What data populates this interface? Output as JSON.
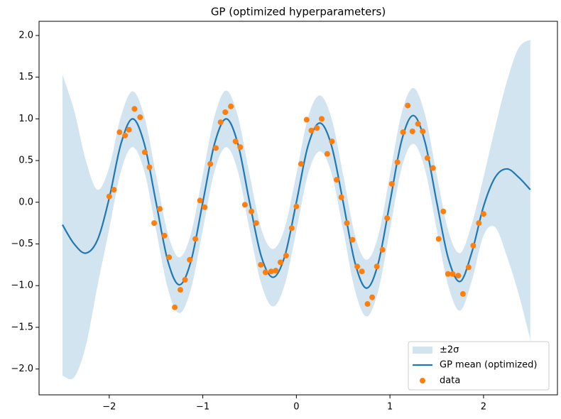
{
  "chart_data": {
    "type": "line",
    "title": "GP (optimized hyperparameters)",
    "x": [
      -2.5,
      -2.375,
      -2.25,
      -2.125,
      -2.0,
      -1.875,
      -1.75,
      -1.625,
      -1.5,
      -1.375,
      -1.25,
      -1.125,
      -1.0,
      -0.875,
      -0.75,
      -0.625,
      -0.5,
      -0.375,
      -0.25,
      -0.125,
      0,
      0.125,
      0.25,
      0.375,
      0.5,
      0.625,
      0.75,
      0.875,
      1.0,
      1.125,
      1.25,
      1.375,
      1.5,
      1.625,
      1.75,
      1.875,
      2.0,
      2.125,
      2.25,
      2.375,
      2.5
    ],
    "series": [
      {
        "name": "GP mean (optimized)",
        "color": "#1f77b4",
        "values": [
          -0.27,
          -0.5,
          -0.61,
          -0.45,
          0.05,
          0.7,
          1.0,
          0.7,
          0.0,
          -0.7,
          -0.99,
          -0.7,
          0.0,
          0.7,
          1.0,
          0.7,
          0.0,
          -0.65,
          -0.9,
          -0.65,
          0.0,
          0.68,
          0.95,
          0.68,
          0.0,
          -0.72,
          -1.03,
          -0.73,
          0.0,
          0.74,
          1.04,
          0.72,
          0.0,
          -0.68,
          -0.95,
          -0.6,
          -0.05,
          0.3,
          0.4,
          0.3,
          0.15
        ]
      }
    ],
    "band": {
      "name": "±2σ",
      "color": "#1f77b4",
      "alpha": 0.2,
      "upper": [
        1.53,
        1.1,
        0.5,
        0.15,
        0.42,
        1.03,
        1.33,
        1.03,
        0.33,
        -0.37,
        -0.66,
        -0.37,
        0.33,
        1.03,
        1.34,
        1.03,
        0.33,
        -0.32,
        -0.56,
        -0.31,
        0.34,
        1.02,
        1.28,
        1.01,
        0.33,
        -0.39,
        -0.69,
        -0.4,
        0.33,
        1.07,
        1.37,
        1.05,
        0.33,
        -0.35,
        -0.61,
        -0.26,
        0.3,
        0.9,
        1.45,
        1.85,
        1.95
      ],
      "lower": [
        -2.08,
        -2.1,
        -1.72,
        -1.0,
        -0.32,
        0.37,
        0.66,
        0.37,
        -0.33,
        -1.03,
        -1.33,
        -1.03,
        -0.33,
        0.37,
        0.66,
        0.37,
        -0.33,
        -0.98,
        -1.25,
        -0.99,
        -0.34,
        0.34,
        0.61,
        0.35,
        -0.33,
        -1.05,
        -1.37,
        -1.06,
        -0.33,
        0.41,
        0.7,
        0.39,
        -0.33,
        -1.01,
        -1.3,
        -0.94,
        -0.4,
        -0.3,
        -0.65,
        -1.1,
        -1.65
      ]
    },
    "scatter": {
      "name": "data",
      "color": "#ff7f0e",
      "x": [
        -2.0,
        -1.95,
        -1.89,
        -1.83,
        -1.79,
        -1.73,
        -1.67,
        -1.62,
        -1.57,
        -1.52,
        -1.46,
        -1.41,
        -1.36,
        -1.3,
        -1.24,
        -1.19,
        -1.14,
        -1.08,
        -1.03,
        -0.98,
        -0.92,
        -0.86,
        -0.81,
        -0.76,
        -0.7,
        -0.65,
        -0.6,
        -0.55,
        -0.48,
        -0.43,
        -0.38,
        -0.33,
        -0.27,
        -0.22,
        -0.17,
        -0.11,
        -0.05,
        0.0,
        0.05,
        0.11,
        0.16,
        0.22,
        0.27,
        0.33,
        0.38,
        0.43,
        0.48,
        0.54,
        0.6,
        0.65,
        0.7,
        0.76,
        0.81,
        0.86,
        0.92,
        0.97,
        1.02,
        1.08,
        1.14,
        1.19,
        1.24,
        1.3,
        1.35,
        1.4,
        1.46,
        1.52,
        1.57,
        1.62,
        1.67,
        1.73,
        1.78,
        1.84,
        1.89,
        1.95,
        2.0
      ],
      "y": [
        0.07,
        0.15,
        0.84,
        0.8,
        0.87,
        1.12,
        1.02,
        0.6,
        0.42,
        -0.25,
        -0.08,
        -0.4,
        -0.66,
        -1.26,
        -1.05,
        -0.93,
        -0.69,
        -0.44,
        0.02,
        -0.06,
        0.46,
        0.65,
        0.96,
        1.08,
        1.15,
        0.73,
        0.66,
        -0.03,
        -0.11,
        -0.25,
        -0.75,
        -0.84,
        -0.83,
        -0.82,
        -0.72,
        -0.64,
        -0.31,
        -0.05,
        0.46,
        0.99,
        0.86,
        0.89,
        1.0,
        0.58,
        0.73,
        0.27,
        0.06,
        -0.25,
        -0.45,
        -0.77,
        -0.83,
        -1.22,
        -1.14,
        -0.77,
        -0.57,
        -0.19,
        0.22,
        0.48,
        0.84,
        1.16,
        0.85,
        0.94,
        0.85,
        0.53,
        0.41,
        -0.44,
        -0.11,
        -0.86,
        -0.86,
        -0.88,
        -1.1,
        -0.78,
        -0.52,
        -0.25,
        -0.14
      ]
    },
    "xlim": [
      -2.75,
      2.79
    ],
    "ylim": [
      -2.31,
      2.17
    ],
    "xticks": [
      {
        "value": -2,
        "label": "−2"
      },
      {
        "value": -1,
        "label": "−1"
      },
      0,
      1,
      2
    ],
    "yticks": [
      {
        "value": -2,
        "label": "−2.0"
      },
      {
        "value": -1.5,
        "label": "−1.5"
      },
      {
        "value": -1,
        "label": "−1.0"
      },
      {
        "value": -0.5,
        "label": "−0.5"
      },
      {
        "value": 0,
        "label": "0.0"
      },
      {
        "value": 0.5,
        "label": "0.5"
      },
      {
        "value": 1,
        "label": "1.0"
      },
      {
        "value": 1.5,
        "label": "1.5"
      },
      {
        "value": 2,
        "label": "2.0"
      }
    ],
    "legend": "lower right"
  }
}
